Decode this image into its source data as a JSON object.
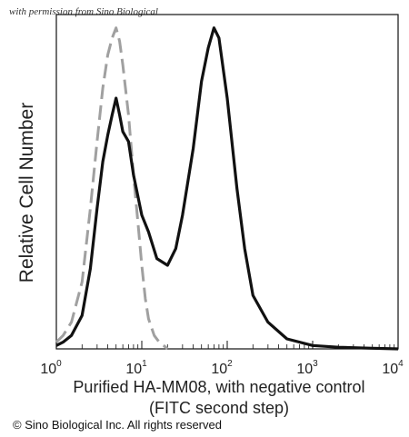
{
  "watermark": "with permission from Sino Biological",
  "copyright": "© Sino Biological Inc. All rights reserved",
  "chart_data": {
    "type": "line",
    "ylabel": "Relative Cell Number",
    "xlabel_line1": "Purified HA-MM08,  with negative control",
    "xlabel_line2": "(FITC second step)",
    "xscale": "log",
    "xlim": [
      1,
      10000
    ],
    "x_ticks": [
      {
        "base": "10",
        "exp": "0"
      },
      {
        "base": "10",
        "exp": "1"
      },
      {
        "base": "10",
        "exp": "2"
      },
      {
        "base": "10",
        "exp": "3"
      },
      {
        "base": "10",
        "exp": "4"
      }
    ],
    "ylim": [
      0,
      100
    ],
    "grid": false,
    "series": [
      {
        "style": "dashed",
        "color": "#a0a0a0",
        "x": [
          1,
          1.2,
          1.5,
          2,
          2.5,
          3,
          3.5,
          4,
          4.5,
          5,
          5.5,
          6,
          7,
          8,
          9,
          10,
          11,
          12,
          14,
          16,
          18,
          20
        ],
        "y": [
          2,
          4,
          8,
          20,
          42,
          62,
          78,
          88,
          93,
          96,
          92,
          85,
          70,
          52,
          38,
          25,
          15,
          9,
          4,
          2,
          1,
          0
        ]
      },
      {
        "style": "solid",
        "color": "#111111",
        "x": [
          1,
          1.2,
          1.5,
          2,
          2.5,
          3,
          3.5,
          4,
          4.5,
          5,
          5.5,
          6,
          7,
          8,
          10,
          12,
          15,
          20,
          25,
          30,
          40,
          50,
          60,
          70,
          80,
          100,
          130,
          160,
          200,
          300,
          500,
          1000,
          2000,
          5000,
          10000
        ],
        "y": [
          1,
          2,
          4,
          10,
          24,
          42,
          56,
          64,
          70,
          75,
          70,
          65,
          62,
          52,
          40,
          35,
          27,
          25,
          30,
          40,
          60,
          80,
          90,
          96,
          93,
          75,
          48,
          30,
          16,
          8,
          3,
          1,
          0.5,
          0.2,
          0
        ]
      }
    ]
  }
}
